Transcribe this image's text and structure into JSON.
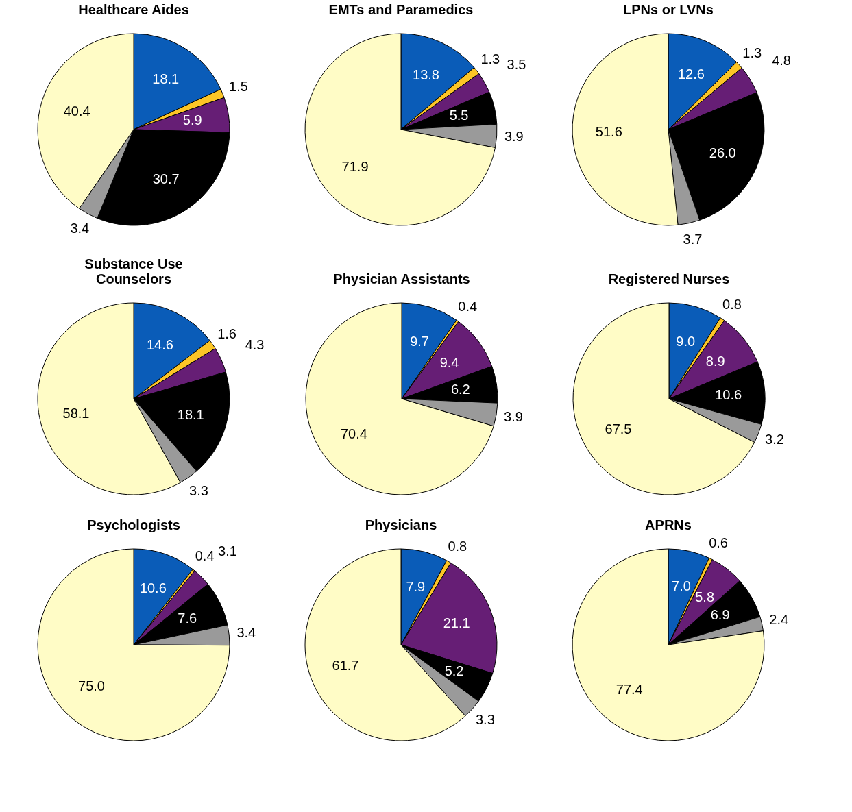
{
  "chart_data": [
    {
      "type": "pie",
      "title": "Healthcare Aides",
      "categories": [
        null,
        null,
        null,
        null,
        null,
        null
      ],
      "values": [
        18.1,
        1.5,
        5.9,
        30.7,
        3.4,
        40.4
      ],
      "value_labels": [
        "18.1",
        "1.5",
        "5.9",
        "30.7",
        "3.4",
        "40.4"
      ],
      "colors": [
        "#0a5cb8",
        "#fcc526",
        "#661e75",
        "#000000",
        "#9a9a9a",
        "#fffcc6"
      ]
    },
    {
      "type": "pie",
      "title": "EMTs and Paramedics",
      "categories": [
        null,
        null,
        null,
        null,
        null,
        null
      ],
      "values": [
        13.8,
        1.3,
        3.5,
        5.5,
        3.9,
        71.9
      ],
      "value_labels": [
        "13.8",
        "1.3",
        "3.5",
        "5.5",
        "3.9",
        "71.9"
      ],
      "colors": [
        "#0a5cb8",
        "#fcc526",
        "#661e75",
        "#000000",
        "#9a9a9a",
        "#fffcc6"
      ]
    },
    {
      "type": "pie",
      "title": "LPNs or LVNs",
      "categories": [
        null,
        null,
        null,
        null,
        null,
        null
      ],
      "values": [
        12.6,
        1.3,
        4.8,
        26.0,
        3.7,
        51.6
      ],
      "value_labels": [
        "12.6",
        "1.3",
        "4.8",
        "26.0",
        "3.7",
        "51.6"
      ],
      "colors": [
        "#0a5cb8",
        "#fcc526",
        "#661e75",
        "#000000",
        "#9a9a9a",
        "#fffcc6"
      ]
    },
    {
      "type": "pie",
      "title": "Substance Use\nCounselors",
      "categories": [
        null,
        null,
        null,
        null,
        null,
        null
      ],
      "values": [
        14.6,
        1.6,
        4.3,
        18.1,
        3.3,
        58.1
      ],
      "value_labels": [
        "14.6",
        "1.6",
        "4.3",
        "18.1",
        "3.3",
        "58.1"
      ],
      "colors": [
        "#0a5cb8",
        "#fcc526",
        "#661e75",
        "#000000",
        "#9a9a9a",
        "#fffcc6"
      ]
    },
    {
      "type": "pie",
      "title": "Physician Assistants",
      "categories": [
        null,
        null,
        null,
        null,
        null,
        null
      ],
      "values": [
        9.7,
        0.4,
        9.4,
        6.2,
        3.9,
        70.4
      ],
      "value_labels": [
        "9.7",
        "0.4",
        "9.4",
        "6.2",
        "3.9",
        "70.4"
      ],
      "colors": [
        "#0a5cb8",
        "#fcc526",
        "#661e75",
        "#000000",
        "#9a9a9a",
        "#fffcc6"
      ]
    },
    {
      "type": "pie",
      "title": "Registered Nurses",
      "categories": [
        null,
        null,
        null,
        null,
        null,
        null
      ],
      "values": [
        9.0,
        0.8,
        8.9,
        10.6,
        3.2,
        67.5
      ],
      "value_labels": [
        "9.0",
        "0.8",
        "8.9",
        "10.6",
        "3.2",
        "67.5"
      ],
      "colors": [
        "#0a5cb8",
        "#fcc526",
        "#661e75",
        "#000000",
        "#9a9a9a",
        "#fffcc6"
      ]
    },
    {
      "type": "pie",
      "title": "Psychologists",
      "categories": [
        null,
        null,
        null,
        null,
        null,
        null
      ],
      "values": [
        10.6,
        0.4,
        3.1,
        7.6,
        3.4,
        75.0
      ],
      "value_labels": [
        "10.6",
        "0.4",
        "3.1",
        "7.6",
        "3.4",
        "75.0"
      ],
      "colors": [
        "#0a5cb8",
        "#fcc526",
        "#661e75",
        "#000000",
        "#9a9a9a",
        "#fffcc6"
      ]
    },
    {
      "type": "pie",
      "title": "Physicians",
      "categories": [
        null,
        null,
        null,
        null,
        null,
        null
      ],
      "values": [
        7.9,
        0.8,
        21.1,
        5.2,
        3.3,
        61.7
      ],
      "value_labels": [
        "7.9",
        "0.8",
        "21.1",
        "5.2",
        "3.3",
        "61.7"
      ],
      "colors": [
        "#0a5cb8",
        "#fcc526",
        "#661e75",
        "#000000",
        "#9a9a9a",
        "#fffcc6"
      ]
    },
    {
      "type": "pie",
      "title": "APRNs",
      "categories": [
        null,
        null,
        null,
        null,
        null,
        null
      ],
      "values": [
        7.0,
        0.6,
        5.8,
        6.9,
        2.4,
        77.4
      ],
      "value_labels": [
        "7.0",
        "0.6",
        "5.8",
        "6.9",
        "2.4",
        "77.4"
      ],
      "colors": [
        "#0a5cb8",
        "#fcc526",
        "#661e75",
        "#000000",
        "#9a9a9a",
        "#fffcc6"
      ]
    }
  ]
}
